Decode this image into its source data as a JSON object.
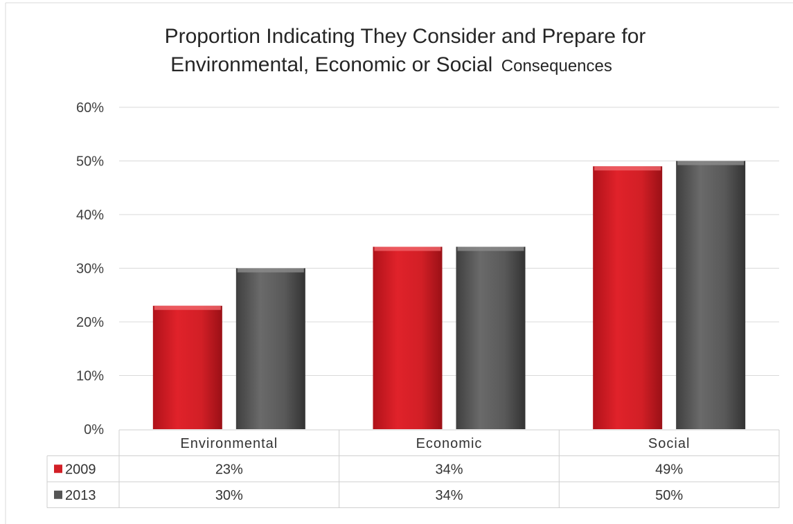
{
  "chart_data": {
    "type": "bar",
    "title_line1": "Proportion Indicating They Consider and Prepare for",
    "title_line2_main": "Environmental, Economic or Social",
    "title_line2_small": "Consequences",
    "categories": [
      "Environmental",
      "Economic",
      "Social"
    ],
    "series": [
      {
        "name": "2009",
        "values": [
          23,
          34,
          49
        ],
        "labels": [
          "23%",
          "34%",
          "49%"
        ],
        "color": "#d21f26"
      },
      {
        "name": "2013",
        "values": [
          30,
          34,
          50
        ],
        "labels": [
          "30%",
          "34%",
          "50%"
        ],
        "color": "#555555"
      }
    ],
    "ylim": [
      0,
      60
    ],
    "yticks": [
      0,
      10,
      20,
      30,
      40,
      50,
      60
    ],
    "ytick_labels": [
      "0%",
      "10%",
      "20%",
      "30%",
      "40%",
      "50%",
      "60%"
    ],
    "grid": true,
    "legend": "data-table-left",
    "xlabel": "",
    "ylabel": ""
  }
}
